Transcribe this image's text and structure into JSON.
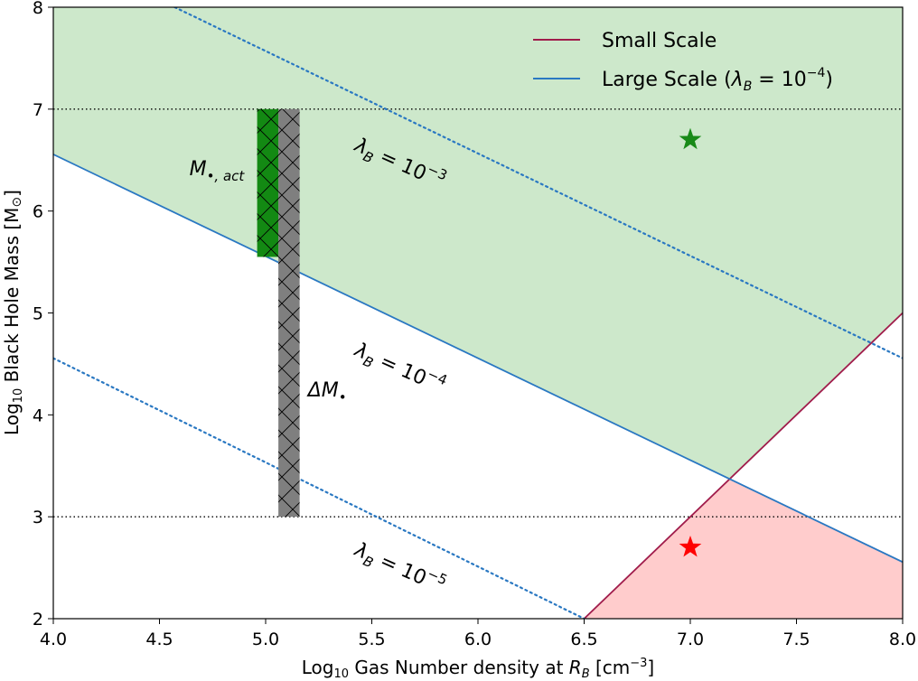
{
  "chart_data": {
    "type": "line",
    "xlabel_main": "Log",
    "xlabel_sub": "10",
    "xlabel_rest": " Gas Number density at ",
    "xlabel_var": "R",
    "xlabel_var_sub": "B",
    "xlabel_unit_open": " [cm",
    "xlabel_unit_exp": "−3",
    "xlabel_unit_close": "]",
    "ylabel_main": "Log",
    "ylabel_sub": "10",
    "ylabel_rest": " Black Hole Mass [M",
    "ylabel_sun": "⊙",
    "ylabel_close": "]",
    "xlim": [
      4.0,
      8.0
    ],
    "ylim": [
      2.0,
      8.0
    ],
    "xticks": [
      4.0,
      4.5,
      5.0,
      5.5,
      6.0,
      6.5,
      7.0,
      7.5,
      8.0
    ],
    "xtick_labels": [
      "4.0",
      "4.5",
      "5.0",
      "5.5",
      "6.0",
      "6.5",
      "7.0",
      "7.5",
      "8.0"
    ],
    "yticks": [
      2,
      3,
      4,
      5,
      6,
      7,
      8
    ],
    "ytick_labels": [
      "2",
      "3",
      "4",
      "5",
      "6",
      "7",
      "8"
    ],
    "series": [
      {
        "name": "Small Scale",
        "color": "#a01c4b",
        "style": "solid",
        "x": [
          6.5,
          8.0
        ],
        "y": [
          2.0,
          5.0
        ]
      },
      {
        "name": "Large Scale",
        "color": "#2a78c2",
        "style": "solid",
        "x": [
          4.0,
          8.0
        ],
        "y": [
          6.556,
          2.556
        ]
      },
      {
        "name": "lambda 1e-3",
        "color": "#2a78c2",
        "style": "dotted",
        "x": [
          4.572,
          8.0
        ],
        "y": [
          8.0,
          4.556
        ]
      },
      {
        "name": "lambda 1e-5",
        "color": "#2a78c2",
        "style": "dotted",
        "x": [
          4.0,
          6.5
        ],
        "y": [
          4.556,
          2.0
        ]
      }
    ],
    "hlines": [
      {
        "y": 7.0,
        "color": "#000000",
        "style": "dotted"
      },
      {
        "y": 3.0,
        "color": "#000000",
        "style": "dotted"
      }
    ],
    "regions": [
      {
        "name": "green-region",
        "color": "#cde8cb",
        "points": [
          [
            4.0,
            8.0
          ],
          [
            8.0,
            8.0
          ],
          [
            8.0,
            5.0
          ],
          [
            7.187,
            3.373
          ],
          [
            4.0,
            6.556
          ]
        ]
      },
      {
        "name": "red-region",
        "color": "#ffcccc",
        "points": [
          [
            6.5,
            2.0
          ],
          [
            8.0,
            2.0
          ],
          [
            8.0,
            2.556
          ],
          [
            7.187,
            3.373
          ]
        ]
      }
    ],
    "bars": [
      {
        "name": "m-act-bar",
        "color": "#138913",
        "x0": 4.96,
        "x1": 5.06,
        "y0": 5.55,
        "y1": 7.0
      },
      {
        "name": "delta-m-bar",
        "color": "#7f7f7f",
        "x0": 5.06,
        "x1": 5.16,
        "y0": 3.0,
        "y1": 7.0
      }
    ],
    "stars": [
      {
        "name": "green-star",
        "color": "#188a18",
        "x": 7.0,
        "y": 6.7
      },
      {
        "name": "red-star",
        "color": "#ff0000",
        "x": 7.0,
        "y": 2.7
      }
    ],
    "annotations": [
      {
        "name": "annot-lambda-1e-3",
        "label_base": "λ",
        "label_sub": "B",
        "label_mid": " = 10",
        "label_exp": "−3",
        "x": 5.62,
        "y": 6.41,
        "rotation": 24
      },
      {
        "name": "annot-lambda-1e-4",
        "label_base": "λ",
        "label_sub": "B",
        "label_mid": " = 10",
        "label_exp": "−4",
        "x": 5.62,
        "y": 4.4,
        "rotation": 24
      },
      {
        "name": "annot-lambda-1e-5",
        "label_base": "λ",
        "label_sub": "B",
        "label_mid": " = 10",
        "label_exp": "−5",
        "x": 5.62,
        "y": 2.44,
        "rotation": 24
      },
      {
        "name": "annot-m-act",
        "label_base": "M",
        "label_sub": "•, act",
        "label_mid": "",
        "label_exp": "",
        "x": 4.77,
        "y": 6.35,
        "rotation": 0
      },
      {
        "name": "annot-delta-m",
        "label_base": "ΔM",
        "label_sub": "•",
        "label_mid": "",
        "label_exp": "",
        "x": 5.29,
        "y": 4.18,
        "rotation": 0
      }
    ],
    "legend": {
      "position": "top-right",
      "entries": [
        {
          "label": "Small Scale",
          "color": "#a01c4b"
        },
        {
          "label": "Large Scale (",
          "label_var": "λ",
          "label_sub": "B",
          "label_mid": " = 10",
          "label_exp": "−4",
          "label_close": ")",
          "color": "#2a78c2"
        }
      ]
    }
  }
}
